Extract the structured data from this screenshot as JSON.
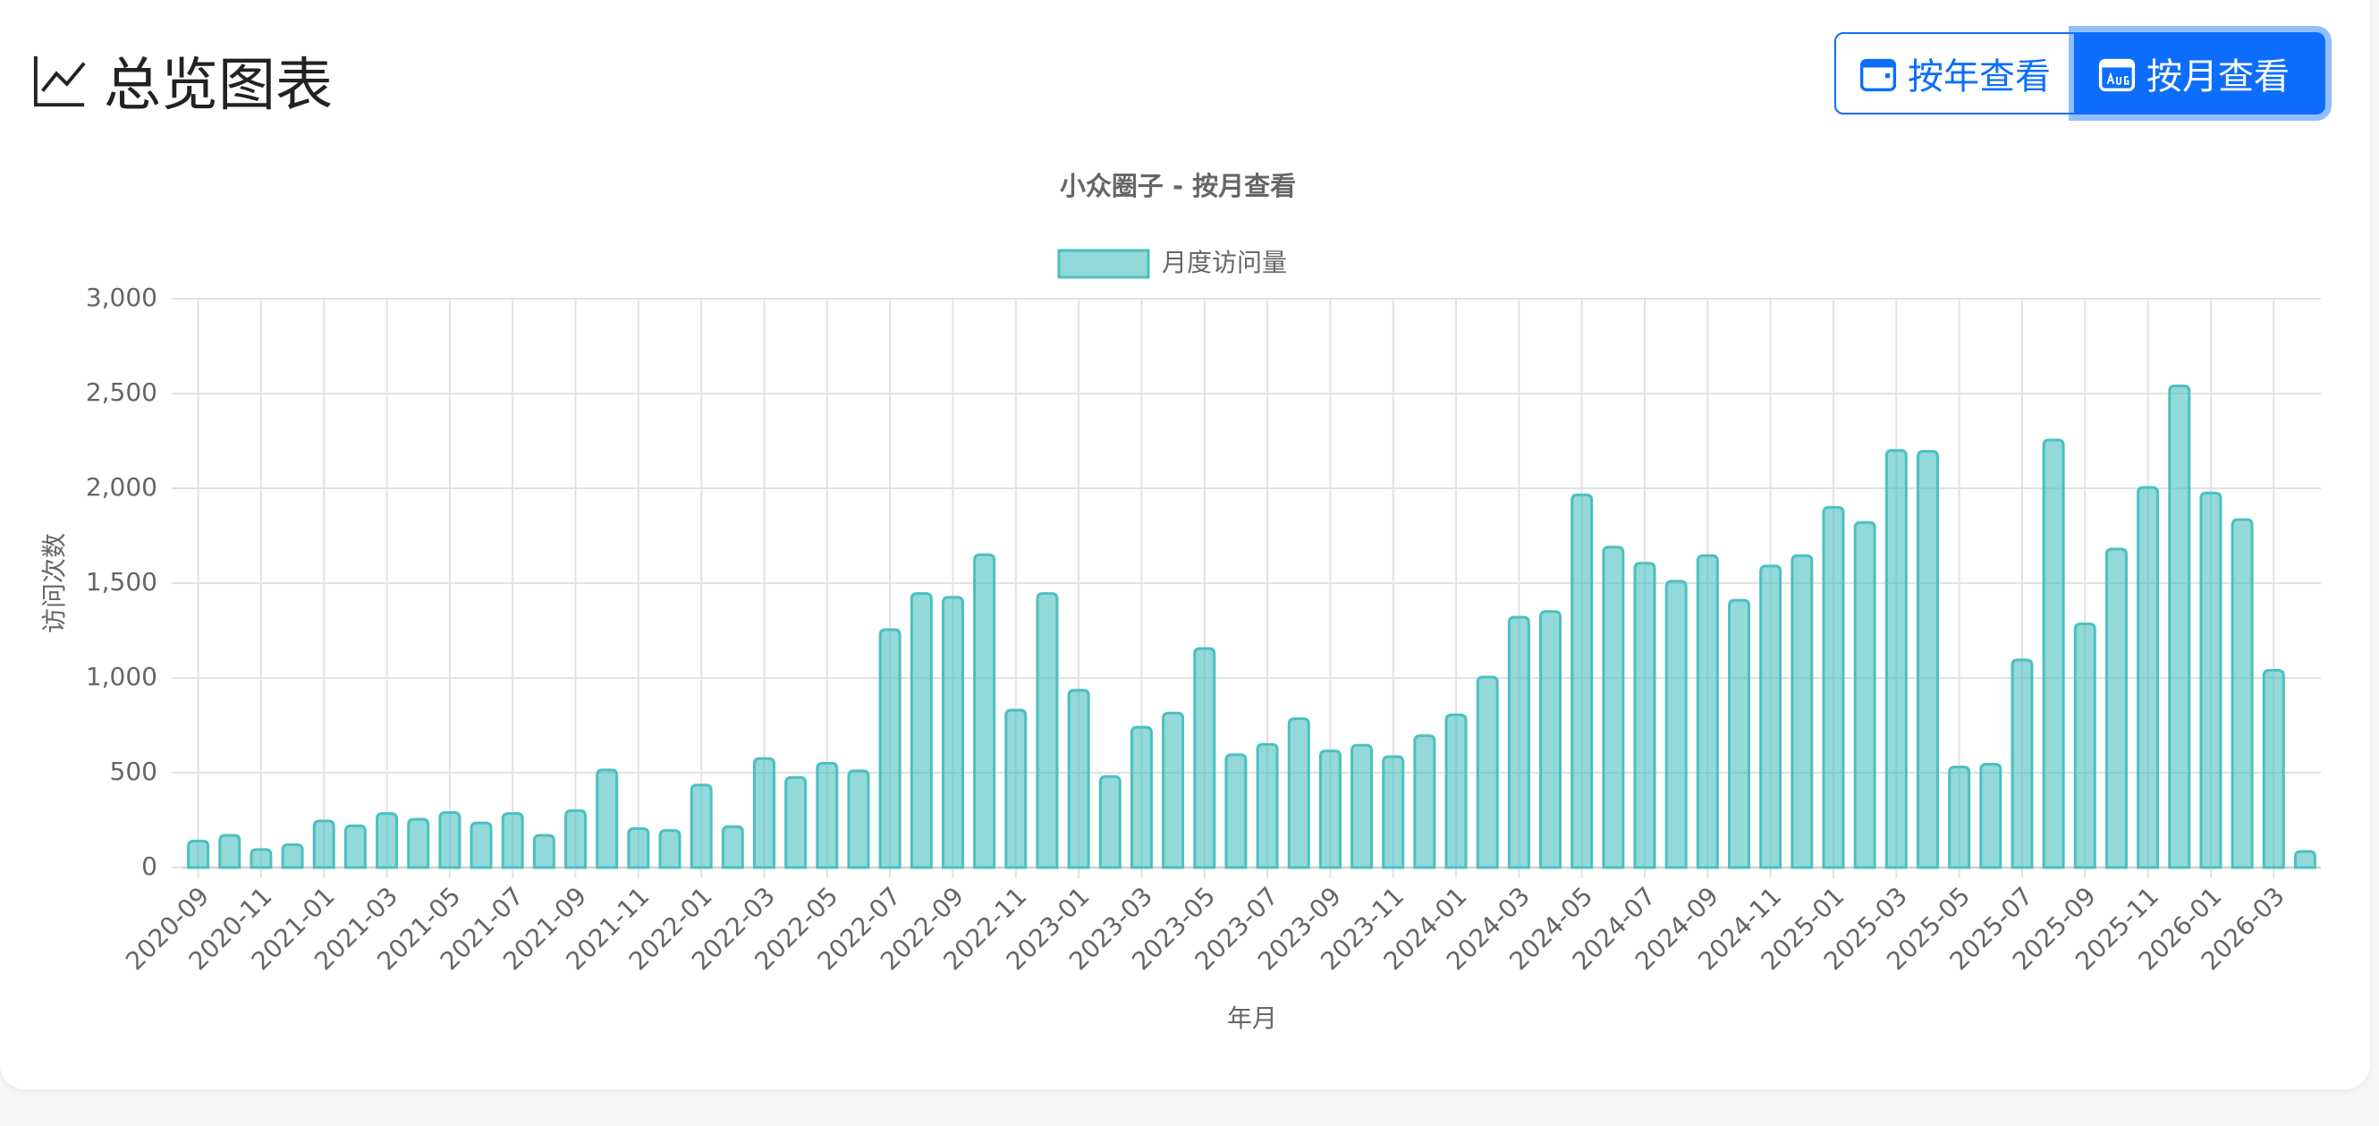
{
  "header": {
    "title": "总览图表",
    "buttons": [
      "按年查看",
      "按月查看"
    ]
  },
  "chart_data": {
    "type": "bar",
    "title": "小众圈子 - 按月查看",
    "x_label": "年月",
    "y_label": "访问次数",
    "categories": [
      "2020-09",
      null,
      "2020-11",
      null,
      "2021-01",
      null,
      "2021-03",
      null,
      "2021-05",
      null,
      "2021-07",
      null,
      "2021-09",
      null,
      "2021-11",
      null,
      "2022-01",
      null,
      "2022-03",
      null,
      "2022-05",
      null,
      "2022-07",
      null,
      "2022-09",
      null,
      "2022-11",
      null,
      "2023-01",
      null,
      "2023-03",
      null,
      "2023-05",
      null,
      "2023-07",
      null,
      "2023-09",
      null,
      "2023-11",
      null,
      "2024-01",
      null,
      "2024-03",
      null,
      "2024-05",
      null,
      "2024-07",
      null,
      "2024-09",
      null,
      "2024-11",
      null,
      "2025-01",
      null,
      "2025-03",
      null,
      "2025-05",
      null,
      "2025-07",
      null,
      "2025-09",
      null,
      "2025-11",
      null,
      "2026-01",
      null,
      "2026-03",
      null
    ],
    "series": [
      {
        "name": "月度访问量",
        "color": "#4bc0c0",
        "values": [
          140,
          170,
          95,
          120,
          245,
          220,
          285,
          255,
          290,
          235,
          285,
          170,
          300,
          515,
          205,
          195,
          435,
          215,
          575,
          475,
          550,
          510,
          1255,
          1445,
          1425,
          1650,
          830,
          1445,
          935,
          480,
          740,
          815,
          1155,
          595,
          650,
          785,
          615,
          645,
          585,
          695,
          805,
          1005,
          1320,
          1350,
          1965,
          1690,
          1605,
          1510,
          1645,
          1410,
          1590,
          1645,
          1900,
          1820,
          2200,
          2195,
          530,
          545,
          1095,
          2255,
          1285,
          1680,
          2005,
          2540,
          1975,
          1835,
          1040,
          85
        ]
      }
    ],
    "ylim": [
      0,
      3000
    ],
    "yticks": [
      0,
      500,
      {
        "value": 1000,
        "label": "1,000"
      },
      {
        "value": 1500,
        "label": "1,500"
      },
      {
        "value": 2000,
        "label": "2,000"
      },
      {
        "value": 2500,
        "label": "2,500"
      },
      {
        "value": 3000,
        "label": "3,000"
      }
    ],
    "grid": true,
    "legend": "top"
  }
}
